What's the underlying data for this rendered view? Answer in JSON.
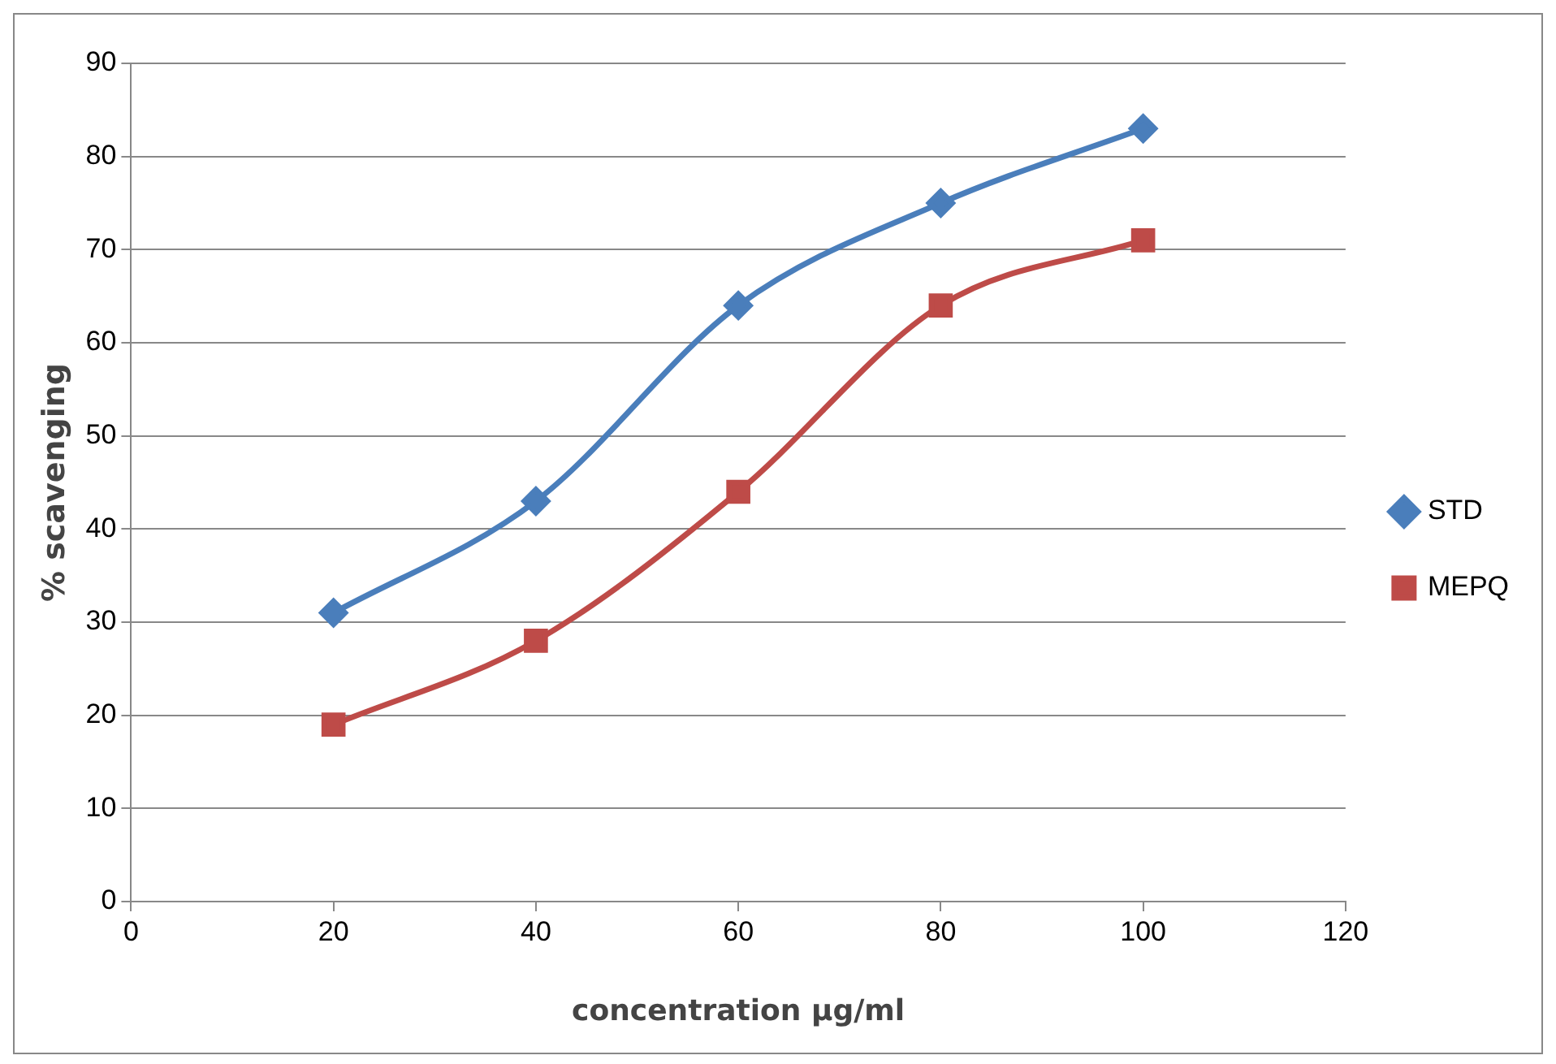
{
  "chart_data": {
    "type": "line",
    "xlabel": "concentration µg/ml",
    "ylabel": "% scavenging",
    "xlim": [
      0,
      120
    ],
    "xticks": [
      0,
      20,
      40,
      60,
      80,
      100,
      120
    ],
    "ylim": [
      0,
      90
    ],
    "yticks": [
      0,
      10,
      20,
      30,
      40,
      50,
      60,
      70,
      80,
      90
    ],
    "grid": "y",
    "legend": "right",
    "series": [
      {
        "name": "STD",
        "color": "#4a7ebb",
        "marker": "diamond",
        "x": [
          20,
          40,
          60,
          80,
          100
        ],
        "values": [
          31,
          43,
          64,
          75,
          83
        ]
      },
      {
        "name": "MEPQ",
        "color": "#be4b48",
        "marker": "square",
        "x": [
          20,
          40,
          60,
          80,
          100
        ],
        "values": [
          19,
          28,
          44,
          64,
          71
        ]
      }
    ]
  }
}
